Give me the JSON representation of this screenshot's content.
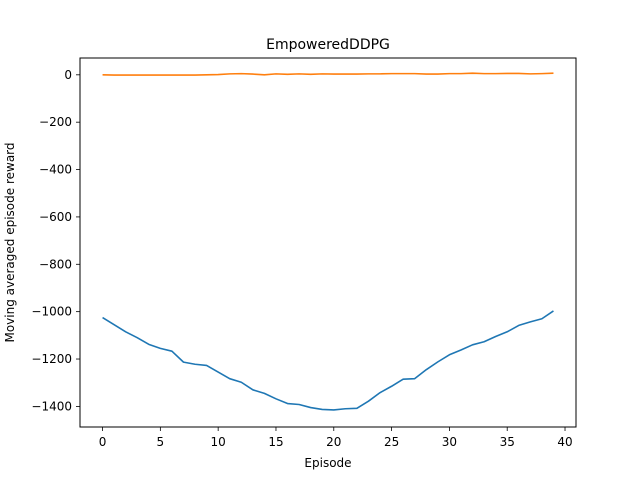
{
  "chart_data": {
    "type": "line",
    "title": "EmpoweredDDPG",
    "xlabel": "Episode",
    "ylabel": "Moving averaged episode reward",
    "xlim": [
      -1.95,
      40.95
    ],
    "ylim": [
      -1487,
      71
    ],
    "xticks": [
      0,
      5,
      10,
      15,
      20,
      25,
      30,
      35,
      40
    ],
    "yticks": [
      0,
      -200,
      -400,
      -600,
      -800,
      -1000,
      -1200,
      -1400
    ],
    "grid": false,
    "legend": "none",
    "x": [
      0,
      1,
      2,
      3,
      4,
      5,
      6,
      7,
      8,
      9,
      10,
      11,
      12,
      13,
      14,
      15,
      16,
      17,
      18,
      19,
      20,
      21,
      22,
      23,
      24,
      25,
      26,
      27,
      28,
      29,
      30,
      31,
      32,
      33,
      34,
      35,
      36,
      37,
      38,
      39
    ],
    "series": [
      {
        "color": "#1f77b4",
        "values": [
          -1025,
          -1055,
          -1085,
          -1110,
          -1138,
          -1155,
          -1167,
          -1213,
          -1222,
          -1227,
          -1255,
          -1283,
          -1298,
          -1330,
          -1345,
          -1368,
          -1388,
          -1392,
          -1405,
          -1413,
          -1415,
          -1410,
          -1408,
          -1378,
          -1342,
          -1315,
          -1285,
          -1283,
          -1245,
          -1212,
          -1182,
          -1162,
          -1140,
          -1127,
          -1105,
          -1085,
          -1058,
          -1043,
          -1030,
          -997
        ]
      },
      {
        "color": "#ff7f0e",
        "values": [
          0,
          -1,
          -1,
          -1,
          -1,
          -1,
          -1,
          -1,
          -1,
          0,
          1,
          4,
          5,
          3,
          0,
          4,
          2,
          4,
          2,
          4,
          3,
          3,
          3,
          4,
          4,
          5,
          5,
          5,
          3,
          3,
          5,
          5,
          7,
          5,
          5,
          6,
          6,
          4,
          5,
          7
        ]
      }
    ]
  }
}
